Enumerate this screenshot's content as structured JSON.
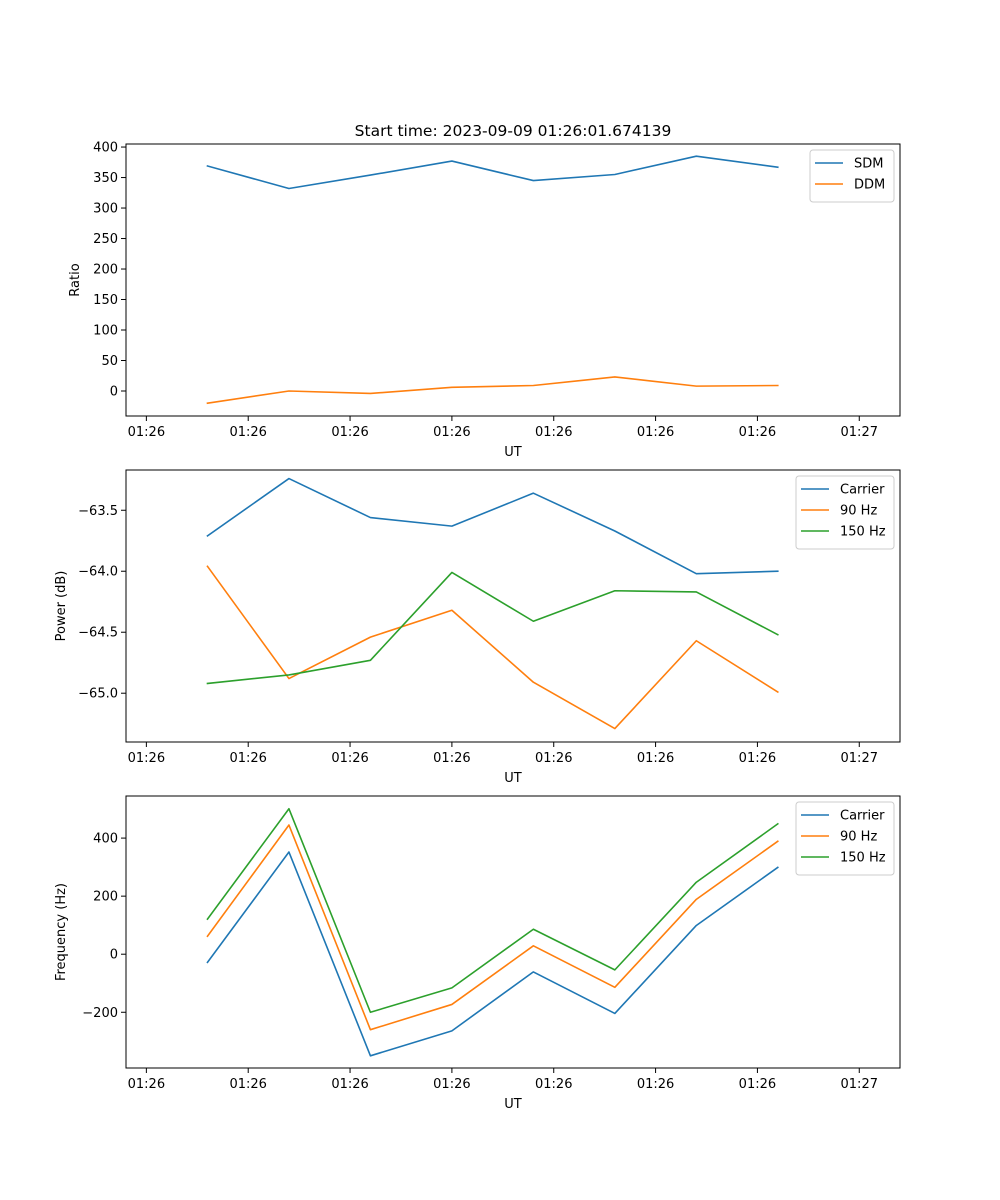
{
  "figure": {
    "title": "Start time: 2023-09-09 01:26:01.674139"
  },
  "chart_data": [
    {
      "type": "line",
      "title": "Start time: 2023-09-09 01:26:01.674139",
      "xlabel": "UT",
      "ylabel": "Ratio",
      "x_tick_labels": [
        "01:26",
        "01:26",
        "01:26",
        "01:26",
        "01:26",
        "01:26",
        "01:26",
        "01:27"
      ],
      "ylim": [
        -41,
        405
      ],
      "y_ticks": [
        0,
        50,
        100,
        150,
        200,
        250,
        300,
        350,
        400
      ],
      "y_tick_labels": [
        "0",
        "50",
        "100",
        "150",
        "200",
        "250",
        "300",
        "350",
        "400"
      ],
      "legend_position": "top-right",
      "series": [
        {
          "name": "SDM",
          "color": "#1f77b4",
          "values": [
            369,
            332,
            354,
            377,
            345,
            355,
            385,
            367
          ]
        },
        {
          "name": "DDM",
          "color": "#ff7f0e",
          "values": [
            -20,
            0,
            -4,
            6,
            9,
            23,
            8,
            9
          ]
        }
      ]
    },
    {
      "type": "line",
      "title": "",
      "xlabel": "UT",
      "ylabel": "Power (dB)",
      "x_tick_labels": [
        "01:26",
        "01:26",
        "01:26",
        "01:26",
        "01:26",
        "01:26",
        "01:26",
        "01:27"
      ],
      "ylim": [
        -65.4,
        -63.17
      ],
      "y_ticks": [
        -65.0,
        -64.5,
        -64.0,
        -63.5
      ],
      "y_tick_labels": [
        "−65.0",
        "−64.5",
        "−64.0",
        "−63.5"
      ],
      "legend_position": "top-right",
      "series": [
        {
          "name": "Carrier",
          "color": "#1f77b4",
          "values": [
            -63.71,
            -63.24,
            -63.56,
            -63.63,
            -63.36,
            -63.67,
            -64.02,
            -64.0
          ]
        },
        {
          "name": "90 Hz",
          "color": "#ff7f0e",
          "values": [
            -63.96,
            -64.88,
            -64.54,
            -64.32,
            -64.91,
            -65.29,
            -64.57,
            -64.99
          ]
        },
        {
          "name": "150 Hz",
          "color": "#2ca02c",
          "values": [
            -64.92,
            -64.85,
            -64.73,
            -64.01,
            -64.41,
            -64.16,
            -64.17,
            -64.52
          ]
        }
      ]
    },
    {
      "type": "line",
      "title": "",
      "xlabel": "UT",
      "ylabel": "Frequency (Hz)",
      "x_tick_labels": [
        "01:26",
        "01:26",
        "01:26",
        "01:26",
        "01:26",
        "01:26",
        "01:26",
        "01:27"
      ],
      "ylim": [
        -392,
        545
      ],
      "y_ticks": [
        -200,
        0,
        200,
        400
      ],
      "y_tick_labels": [
        "−200",
        "0",
        "200",
        "400"
      ],
      "legend_position": "top-right",
      "series": [
        {
          "name": "Carrier",
          "color": "#1f77b4",
          "values": [
            -28,
            352,
            -350,
            -264,
            -61,
            -204,
            99,
            299
          ]
        },
        {
          "name": "90 Hz",
          "color": "#ff7f0e",
          "values": [
            62,
            445,
            -260,
            -173,
            29,
            -114,
            189,
            389
          ]
        },
        {
          "name": "150 Hz",
          "color": "#2ca02c",
          "values": [
            121,
            501,
            -200,
            -116,
            86,
            -54,
            248,
            449
          ]
        }
      ]
    }
  ]
}
